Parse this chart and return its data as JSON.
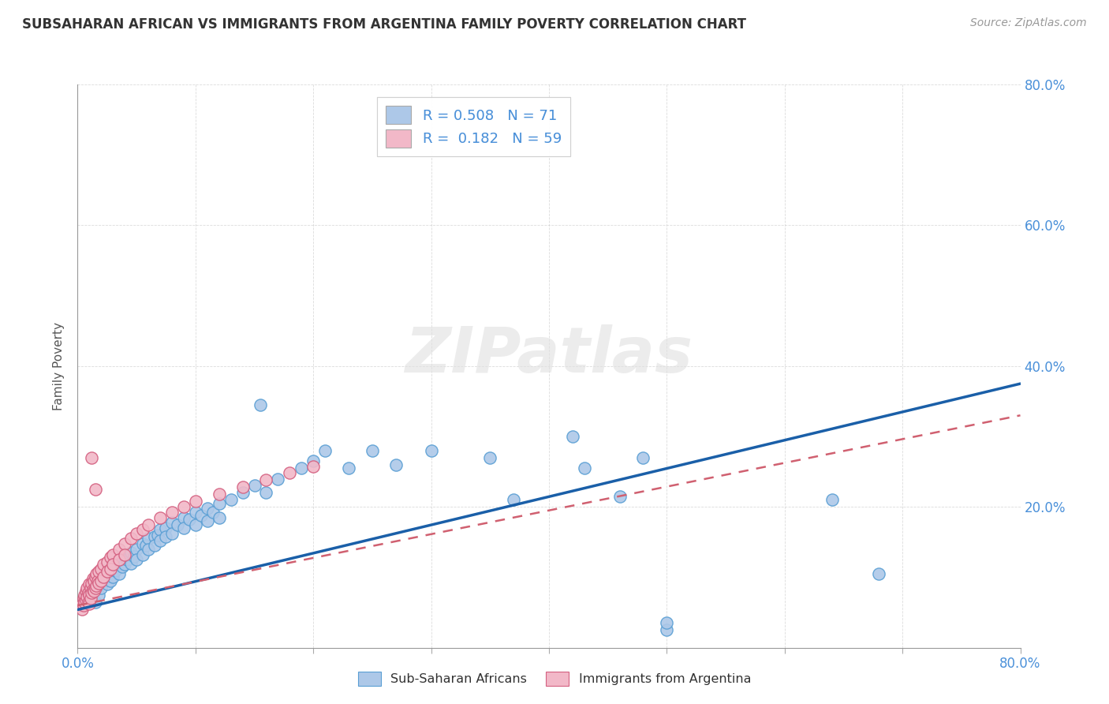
{
  "title": "SUBSAHARAN AFRICAN VS IMMIGRANTS FROM ARGENTINA FAMILY POVERTY CORRELATION CHART",
  "source": "Source: ZipAtlas.com",
  "ylabel": "Family Poverty",
  "legend_label1": "Sub-Saharan Africans",
  "legend_label2": "Immigrants from Argentina",
  "R1": 0.508,
  "N1": 71,
  "R2": 0.182,
  "N2": 59,
  "color1_face": "#adc8e8",
  "color1_edge": "#5a9fd4",
  "color2_face": "#f2b8c8",
  "color2_edge": "#d46080",
  "line_color1": "#1a5fa8",
  "line_color2": "#d06070",
  "background_color": "#ffffff",
  "watermark": "ZIPatlas",
  "blue_scatter": [
    [
      0.015,
      0.065
    ],
    [
      0.018,
      0.075
    ],
    [
      0.02,
      0.095
    ],
    [
      0.02,
      0.085
    ],
    [
      0.022,
      0.1
    ],
    [
      0.025,
      0.09
    ],
    [
      0.025,
      0.105
    ],
    [
      0.028,
      0.095
    ],
    [
      0.03,
      0.115
    ],
    [
      0.03,
      0.1
    ],
    [
      0.032,
      0.11
    ],
    [
      0.035,
      0.12
    ],
    [
      0.035,
      0.105
    ],
    [
      0.038,
      0.115
    ],
    [
      0.04,
      0.13
    ],
    [
      0.04,
      0.118
    ],
    [
      0.042,
      0.125
    ],
    [
      0.045,
      0.135
    ],
    [
      0.045,
      0.12
    ],
    [
      0.048,
      0.13
    ],
    [
      0.05,
      0.14
    ],
    [
      0.05,
      0.125
    ],
    [
      0.055,
      0.148
    ],
    [
      0.055,
      0.132
    ],
    [
      0.058,
      0.145
    ],
    [
      0.06,
      0.155
    ],
    [
      0.06,
      0.14
    ],
    [
      0.065,
      0.158
    ],
    [
      0.065,
      0.145
    ],
    [
      0.068,
      0.16
    ],
    [
      0.07,
      0.168
    ],
    [
      0.07,
      0.152
    ],
    [
      0.075,
      0.17
    ],
    [
      0.075,
      0.158
    ],
    [
      0.08,
      0.178
    ],
    [
      0.08,
      0.162
    ],
    [
      0.085,
      0.175
    ],
    [
      0.09,
      0.185
    ],
    [
      0.09,
      0.17
    ],
    [
      0.095,
      0.182
    ],
    [
      0.1,
      0.192
    ],
    [
      0.1,
      0.175
    ],
    [
      0.105,
      0.188
    ],
    [
      0.11,
      0.198
    ],
    [
      0.11,
      0.18
    ],
    [
      0.115,
      0.192
    ],
    [
      0.12,
      0.205
    ],
    [
      0.12,
      0.185
    ],
    [
      0.13,
      0.21
    ],
    [
      0.14,
      0.22
    ],
    [
      0.15,
      0.23
    ],
    [
      0.155,
      0.345
    ],
    [
      0.16,
      0.22
    ],
    [
      0.17,
      0.24
    ],
    [
      0.19,
      0.255
    ],
    [
      0.2,
      0.265
    ],
    [
      0.21,
      0.28
    ],
    [
      0.23,
      0.255
    ],
    [
      0.25,
      0.28
    ],
    [
      0.27,
      0.26
    ],
    [
      0.3,
      0.28
    ],
    [
      0.35,
      0.27
    ],
    [
      0.37,
      0.21
    ],
    [
      0.42,
      0.3
    ],
    [
      0.43,
      0.255
    ],
    [
      0.46,
      0.215
    ],
    [
      0.48,
      0.27
    ],
    [
      0.5,
      0.025
    ],
    [
      0.5,
      0.035
    ],
    [
      0.64,
      0.21
    ],
    [
      0.68,
      0.105
    ]
  ],
  "pink_scatter": [
    [
      0.003,
      0.06
    ],
    [
      0.004,
      0.055
    ],
    [
      0.005,
      0.07
    ],
    [
      0.005,
      0.06
    ],
    [
      0.006,
      0.075
    ],
    [
      0.006,
      0.065
    ],
    [
      0.007,
      0.08
    ],
    [
      0.007,
      0.068
    ],
    [
      0.008,
      0.085
    ],
    [
      0.008,
      0.072
    ],
    [
      0.009,
      0.078
    ],
    [
      0.009,
      0.065
    ],
    [
      0.01,
      0.09
    ],
    [
      0.01,
      0.075
    ],
    [
      0.01,
      0.062
    ],
    [
      0.011,
      0.085
    ],
    [
      0.011,
      0.07
    ],
    [
      0.012,
      0.092
    ],
    [
      0.012,
      0.078
    ],
    [
      0.013,
      0.098
    ],
    [
      0.013,
      0.082
    ],
    [
      0.014,
      0.095
    ],
    [
      0.014,
      0.08
    ],
    [
      0.015,
      0.1
    ],
    [
      0.015,
      0.085
    ],
    [
      0.016,
      0.105
    ],
    [
      0.016,
      0.088
    ],
    [
      0.017,
      0.095
    ],
    [
      0.018,
      0.108
    ],
    [
      0.018,
      0.092
    ],
    [
      0.02,
      0.112
    ],
    [
      0.02,
      0.095
    ],
    [
      0.022,
      0.118
    ],
    [
      0.022,
      0.1
    ],
    [
      0.025,
      0.122
    ],
    [
      0.025,
      0.108
    ],
    [
      0.028,
      0.128
    ],
    [
      0.028,
      0.112
    ],
    [
      0.03,
      0.132
    ],
    [
      0.03,
      0.118
    ],
    [
      0.035,
      0.14
    ],
    [
      0.035,
      0.125
    ],
    [
      0.04,
      0.148
    ],
    [
      0.04,
      0.132
    ],
    [
      0.045,
      0.155
    ],
    [
      0.05,
      0.162
    ],
    [
      0.055,
      0.168
    ],
    [
      0.06,
      0.175
    ],
    [
      0.07,
      0.185
    ],
    [
      0.08,
      0.192
    ],
    [
      0.012,
      0.27
    ],
    [
      0.015,
      0.225
    ],
    [
      0.09,
      0.2
    ],
    [
      0.1,
      0.208
    ],
    [
      0.12,
      0.218
    ],
    [
      0.14,
      0.228
    ],
    [
      0.16,
      0.238
    ],
    [
      0.18,
      0.248
    ],
    [
      0.2,
      0.258
    ]
  ],
  "xlim": [
    0.0,
    0.8
  ],
  "ylim": [
    0.0,
    0.8
  ],
  "x_ticks": [
    0.0,
    0.1,
    0.2,
    0.3,
    0.4,
    0.5,
    0.6,
    0.7,
    0.8
  ],
  "y_ticks": [
    0.0,
    0.2,
    0.4,
    0.6,
    0.8
  ],
  "blue_line": [
    0.0,
    0.054,
    0.8,
    0.375
  ],
  "pink_line": [
    0.0,
    0.06,
    0.8,
    0.33
  ]
}
